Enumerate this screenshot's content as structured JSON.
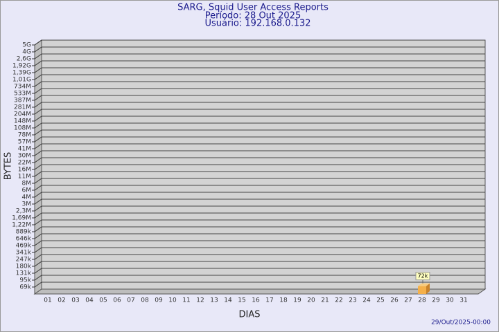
{
  "chart_data": {
    "type": "bar",
    "title": "SARG, Squid User Access Reports",
    "subtitle": [
      "Período: 28 Out 2025",
      "Usuário: 192.168.0.132"
    ],
    "x_label": "DIAS",
    "y_label": "BYTES",
    "footer": "29/Out/2025-00:00",
    "categories": [
      "01",
      "02",
      "03",
      "04",
      "05",
      "06",
      "07",
      "08",
      "09",
      "10",
      "11",
      "12",
      "13",
      "14",
      "15",
      "16",
      "17",
      "18",
      "19",
      "20",
      "21",
      "22",
      "23",
      "24",
      "25",
      "26",
      "27",
      "28",
      "29",
      "30",
      "31"
    ],
    "values": [
      null,
      null,
      null,
      null,
      null,
      null,
      null,
      null,
      null,
      null,
      null,
      null,
      null,
      null,
      null,
      null,
      null,
      null,
      null,
      null,
      null,
      null,
      null,
      null,
      null,
      null,
      null,
      72000,
      null,
      null,
      null
    ],
    "value_labels": [
      null,
      null,
      null,
      null,
      null,
      null,
      null,
      null,
      null,
      null,
      null,
      null,
      null,
      null,
      null,
      null,
      null,
      null,
      null,
      null,
      null,
      null,
      null,
      null,
      null,
      null,
      null,
      "72k",
      null,
      null,
      null
    ],
    "color": "#f5b04a",
    "ylim": [
      50000,
      5000000000
    ],
    "yticks": [
      {
        "value": 69000,
        "label": "69k"
      },
      {
        "value": 95000,
        "label": "95k"
      },
      {
        "value": 131000,
        "label": "131k"
      },
      {
        "value": 180000,
        "label": "180k"
      },
      {
        "value": 247000,
        "label": "247k"
      },
      {
        "value": 341000,
        "label": "341k"
      },
      {
        "value": 469000,
        "label": "469k"
      },
      {
        "value": 646000,
        "label": "646k"
      },
      {
        "value": 889000,
        "label": "889k"
      },
      {
        "value": 1220000,
        "label": "1,22M"
      },
      {
        "value": 1690000,
        "label": "1,69M"
      },
      {
        "value": 2300000,
        "label": "2,3M"
      },
      {
        "value": 3000000,
        "label": "3M"
      },
      {
        "value": 4000000,
        "label": "4M"
      },
      {
        "value": 6000000,
        "label": "6M"
      },
      {
        "value": 8000000,
        "label": "8M"
      },
      {
        "value": 11000000,
        "label": "11M"
      },
      {
        "value": 16000000,
        "label": "16M"
      },
      {
        "value": 22000000,
        "label": "22M"
      },
      {
        "value": 30000000,
        "label": "30M"
      },
      {
        "value": 41000000,
        "label": "41M"
      },
      {
        "value": 57000000,
        "label": "57M"
      },
      {
        "value": 78000000,
        "label": "78M"
      },
      {
        "value": 108000000,
        "label": "108M"
      },
      {
        "value": 148000000,
        "label": "148M"
      },
      {
        "value": 204000000,
        "label": "204M"
      },
      {
        "value": 281000000,
        "label": "281M"
      },
      {
        "value": 387000000,
        "label": "387M"
      },
      {
        "value": 533000000,
        "label": "533M"
      },
      {
        "value": 734000000,
        "label": "734M"
      },
      {
        "value": 1010000000,
        "label": "1,01G"
      },
      {
        "value": 1390000000,
        "label": "1,39G"
      },
      {
        "value": 1920000000,
        "label": "1,92G"
      },
      {
        "value": 2600000000,
        "label": "2,6G"
      },
      {
        "value": 4000000000,
        "label": "4G"
      },
      {
        "value": 5000000000,
        "label": "5G"
      }
    ],
    "grid": true
  }
}
